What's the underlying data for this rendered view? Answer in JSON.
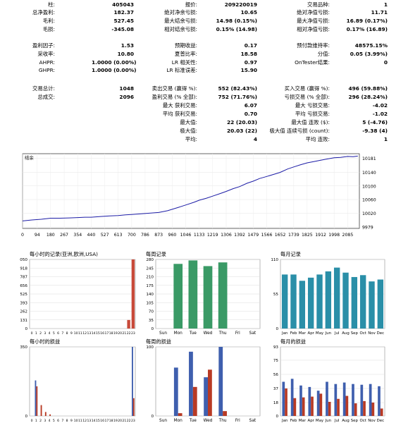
{
  "stats": {
    "col1": [
      {
        "label": "柱:",
        "value": "405043"
      },
      {
        "label": "总净盈利:",
        "value": "182.37"
      },
      {
        "label": "毛利:",
        "value": "527.45"
      },
      {
        "label": "毛损:",
        "value": "-345.08"
      },
      {
        "label": "",
        "value": ""
      },
      {
        "label": "盈利因子:",
        "value": "1.53"
      },
      {
        "label": "采收率:",
        "value": "10.80"
      },
      {
        "label": "AHPR:",
        "value": "1.0000 (0.00%)"
      },
      {
        "label": "GHPR:",
        "value": "1.0000 (0.00%)"
      },
      {
        "label": "",
        "value": ""
      },
      {
        "label": "交易总计:",
        "value": "1048"
      },
      {
        "label": "总成交:",
        "value": "2096"
      }
    ],
    "col2": [
      {
        "label": "报价:",
        "value": "209220019"
      },
      {
        "label": "绝对净余亏损:",
        "value": "10.65"
      },
      {
        "label": "最大结余亏损:",
        "value": "14.98 (0.15%)"
      },
      {
        "label": "相对结余亏损:",
        "value": "0.15% (14.98)"
      },
      {
        "label": "",
        "value": ""
      },
      {
        "label": "预期收益:",
        "value": "0.17"
      },
      {
        "label": "夏普比率:",
        "value": "18.58"
      },
      {
        "label": "LR 相关性:",
        "value": "0.97"
      },
      {
        "label": "LR 标准误差:",
        "value": "15.90"
      },
      {
        "label": "",
        "value": ""
      },
      {
        "label": "卖出交易 (赢得 %):",
        "value": "552 (82.43%)"
      },
      {
        "label": "盈利交易 (% 全部):",
        "value": "752 (71.76%)"
      },
      {
        "label": "最大 获利交易:",
        "value": "6.07"
      },
      {
        "label": "平均 获利交易:",
        "value": "0.70"
      },
      {
        "label": "最大值:",
        "value": "22 (20.03)"
      },
      {
        "label": "极大值:",
        "value": "20.03 (22)"
      },
      {
        "label": "平均:",
        "value": "4"
      }
    ],
    "col3": [
      {
        "label": "交易品种:",
        "value": "1"
      },
      {
        "label": "绝对净值亏损:",
        "value": "11.71"
      },
      {
        "label": "最大净值亏损:",
        "value": "16.89 (0.17%)"
      },
      {
        "label": "相对净值亏损:",
        "value": "0.17% (16.89)"
      },
      {
        "label": "",
        "value": ""
      },
      {
        "label": "预付款维持率:",
        "value": "48575.15%"
      },
      {
        "label": "分值:",
        "value": "0.05 (3.99%)"
      },
      {
        "label": "OnTester结果:",
        "value": "0"
      },
      {
        "label": "",
        "value": ""
      },
      {
        "label": "",
        "value": ""
      },
      {
        "label": "买入交易 (赢得 %):",
        "value": "496 (59.88%)"
      },
      {
        "label": "亏损交易 (% 全部):",
        "value": "296 (28.24%)"
      },
      {
        "label": "最大 亏损交易:",
        "value": "-4.02"
      },
      {
        "label": "平均 亏损交易:",
        "value": "-1.02"
      },
      {
        "label": "最大值 连败 ($):",
        "value": "5 (-4.76)"
      },
      {
        "label": "极大值 连续亏损 (count):",
        "value": "-9.38 (4)"
      },
      {
        "label": "平均 连败:",
        "value": "1"
      }
    ]
  },
  "chart_data": [
    {
      "type": "line",
      "title": "结余",
      "x_ticks": [
        0,
        94,
        180,
        267,
        354,
        440,
        527,
        613,
        700,
        786,
        873,
        960,
        1046,
        1133,
        1219,
        1306,
        1392,
        1479,
        1566,
        1652,
        1739,
        1825,
        1912,
        1998,
        2085
      ],
      "y_ticks": [
        9979,
        10020,
        10060,
        10100,
        10140,
        10181
      ],
      "ylim": [
        9975,
        10195
      ],
      "xlim": [
        0,
        2160
      ],
      "series": [
        {
          "values": [
            [
              0,
              9997
            ],
            [
              60,
              10000
            ],
            [
              120,
              10002
            ],
            [
              180,
              10005
            ],
            [
              240,
              10005
            ],
            [
              300,
              10006
            ],
            [
              354,
              10007
            ],
            [
              400,
              10008
            ],
            [
              440,
              10008
            ],
            [
              500,
              10010
            ],
            [
              560,
              10012
            ],
            [
              613,
              10013
            ],
            [
              660,
              10015
            ],
            [
              700,
              10016
            ],
            [
              760,
              10018
            ],
            [
              820,
              10020
            ],
            [
              873,
              10022
            ],
            [
              930,
              10027
            ],
            [
              1000,
              10037
            ],
            [
              1046,
              10044
            ],
            [
              1100,
              10052
            ],
            [
              1133,
              10058
            ],
            [
              1180,
              10064
            ],
            [
              1219,
              10070
            ],
            [
              1270,
              10078
            ],
            [
              1306,
              10084
            ],
            [
              1350,
              10092
            ],
            [
              1392,
              10098
            ],
            [
              1440,
              10108
            ],
            [
              1479,
              10114
            ],
            [
              1520,
              10122
            ],
            [
              1566,
              10128
            ],
            [
              1610,
              10134
            ],
            [
              1652,
              10140
            ],
            [
              1700,
              10150
            ],
            [
              1739,
              10156
            ],
            [
              1780,
              10162
            ],
            [
              1825,
              10168
            ],
            [
              1870,
              10172
            ],
            [
              1912,
              10176
            ],
            [
              1960,
              10180
            ],
            [
              1998,
              10183
            ],
            [
              2040,
              10184
            ],
            [
              2085,
              10187
            ],
            [
              2120,
              10186
            ],
            [
              2150,
              10188
            ]
          ]
        }
      ],
      "color": "#1c1ca6"
    },
    {
      "type": "bar",
      "title": "每小时的记录(亚洲,欧洲,USA)",
      "categories": [
        "0",
        "1",
        "2",
        "3",
        "4",
        "5",
        "6",
        "7",
        "8",
        "9",
        "10",
        "11",
        "12",
        "13",
        "14",
        "15",
        "16",
        "17",
        "18",
        "19",
        "20",
        "21",
        "22",
        "23"
      ],
      "y_ticks": [
        0,
        131,
        262,
        393,
        525,
        656,
        787,
        918,
        1050
      ],
      "ylim": [
        0,
        1050
      ],
      "values": [
        0,
        0,
        0,
        0,
        0,
        0,
        0,
        0,
        0,
        0,
        0,
        0,
        0,
        0,
        0,
        0,
        0,
        0,
        0,
        0,
        0,
        0,
        130,
        1050
      ],
      "color": "#c84a3a"
    },
    {
      "type": "bar",
      "title": "每周记录",
      "categories": [
        "Sun",
        "Mon",
        "Tue",
        "Wed",
        "Thu",
        "Fri",
        "Sat"
      ],
      "y_ticks": [
        0,
        35,
        70,
        105,
        140,
        175,
        210,
        245,
        280
      ],
      "ylim": [
        0,
        280
      ],
      "values": [
        0,
        262,
        276,
        253,
        268,
        0,
        0
      ],
      "color": "#3a9a66"
    },
    {
      "type": "bar",
      "title": "每月记录",
      "categories": [
        "Jan",
        "Feb",
        "Mar",
        "Apr",
        "May",
        "Jun",
        "Jul",
        "Aug",
        "Sep",
        "Oct",
        "Nov",
        "Dec"
      ],
      "y_ticks": [
        0,
        55,
        110
      ],
      "ylim": [
        0,
        110
      ],
      "values": [
        86,
        86,
        76,
        81,
        86,
        91,
        97,
        89,
        82,
        85,
        75,
        78
      ],
      "color": "#2a8fa8"
    },
    {
      "type": "bar",
      "title": "每小时的损益",
      "categories": [
        "0",
        "1",
        "2",
        "3",
        "4",
        "5",
        "6",
        "7",
        "8",
        "9",
        "10",
        "11",
        "12",
        "13",
        "14",
        "15",
        "16",
        "17",
        "18",
        "19",
        "20",
        "21",
        "22",
        "23"
      ],
      "y_ticks": [
        0,
        350
      ],
      "ylim": [
        0,
        350
      ],
      "series": [
        {
          "name": "",
          "values": [
            0,
            180,
            0,
            0,
            0,
            0,
            0,
            0,
            0,
            0,
            0,
            0,
            0,
            0,
            0,
            0,
            0,
            0,
            0,
            0,
            0,
            0,
            0,
            350
          ]
        },
        {
          "name": "",
          "values": [
            0,
            150,
            55,
            20,
            8,
            0,
            0,
            0,
            0,
            0,
            0,
            0,
            0,
            0,
            0,
            0,
            0,
            0,
            0,
            0,
            0,
            0,
            0,
            90
          ]
        }
      ],
      "colors": [
        "#3f5fae",
        "#b83a24"
      ]
    },
    {
      "type": "bar",
      "title": "每周的损益",
      "categories": [
        "Sun",
        "Mon",
        "Tue",
        "Wed",
        "Thu",
        "Fri",
        "Sat"
      ],
      "y_ticks": [
        0,
        100
      ],
      "ylim": [
        0,
        100
      ],
      "series": [
        {
          "name": "",
          "values": [
            0,
            70,
            93,
            56,
            100,
            0,
            0
          ]
        },
        {
          "name": "",
          "values": [
            0,
            4,
            42,
            67,
            7,
            0,
            0
          ]
        }
      ],
      "colors": [
        "#3f5fae",
        "#b83a24"
      ]
    },
    {
      "type": "bar",
      "title": "每月的损益",
      "categories": [
        "Jan",
        "Feb",
        "Mar",
        "Apr",
        "May",
        "Jun",
        "Jul",
        "Aug",
        "Sep",
        "Oct",
        "Nov",
        "Dec"
      ],
      "y_ticks": [
        0,
        18,
        37,
        56,
        75,
        93
      ],
      "ylim": [
        0,
        93
      ],
      "series": [
        {
          "name": "",
          "values": [
            46,
            50,
            41,
            39,
            34,
            46,
            43,
            45,
            43,
            42,
            43,
            40
          ]
        },
        {
          "name": "",
          "values": [
            37,
            24,
            25,
            26,
            30,
            19,
            23,
            27,
            17,
            20,
            18,
            10
          ]
        }
      ],
      "colors": [
        "#3f5fae",
        "#b83a24"
      ]
    }
  ]
}
